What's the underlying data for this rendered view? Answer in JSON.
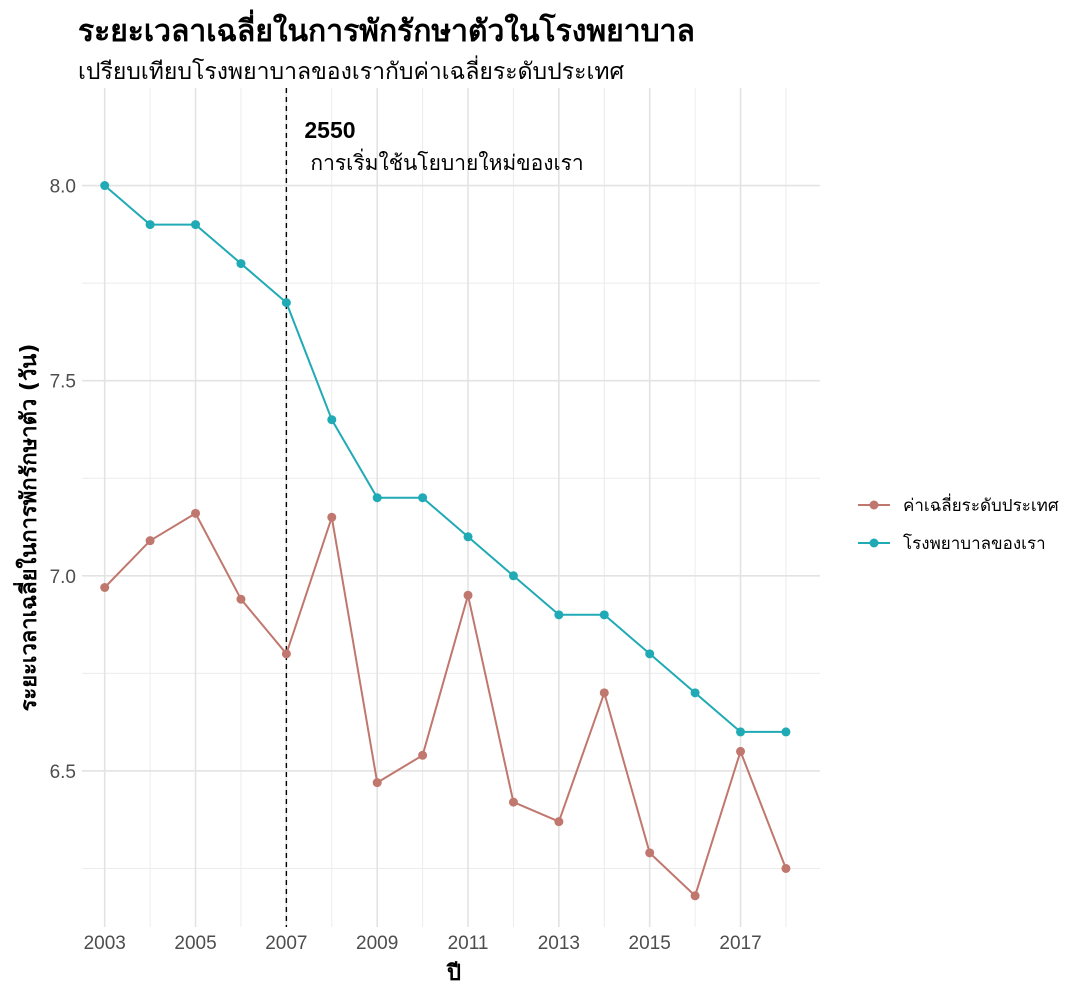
{
  "chart_data": {
    "type": "line",
    "title": "ระยะเวลาเฉลี่ยในการพักรักษาตัวในโรงพยาบาล",
    "subtitle": "เปรียบเทียบโรงพยาบาลของเรากับค่าเฉลี่ยระดับประเทศ",
    "xlabel": "ปี",
    "ylabel": "ระยะเวลาเฉลี่ยในการพักรักษาตัว (วัน)",
    "x": [
      2003,
      2004,
      2005,
      2006,
      2007,
      2008,
      2009,
      2010,
      2011,
      2012,
      2013,
      2014,
      2015,
      2016,
      2017,
      2018
    ],
    "x_ticks": [
      2003,
      2005,
      2007,
      2009,
      2011,
      2013,
      2015,
      2017
    ],
    "y_ticks": [
      6.5,
      7.0,
      7.5,
      8.0
    ],
    "y_tick_labels": [
      "6.5",
      "7.0",
      "7.5",
      "8.0"
    ],
    "xlim": [
      2002.5,
      2018.75
    ],
    "ylim": [
      6.1,
      8.25
    ],
    "grid": true,
    "legend_position": "right",
    "series": [
      {
        "name": "ค่าเฉลี่ยระดับประเทศ",
        "color": "#c0776e",
        "values": [
          6.97,
          7.09,
          7.16,
          6.94,
          6.8,
          7.15,
          6.47,
          6.54,
          6.95,
          6.42,
          6.37,
          6.7,
          6.29,
          6.18,
          6.55,
          6.25
        ]
      },
      {
        "name": "โรงพยาบาลของเรา",
        "color": "#20aab5",
        "values": [
          8.0,
          7.9,
          7.9,
          7.8,
          7.7,
          7.4,
          7.2,
          7.2,
          7.1,
          7.0,
          6.9,
          6.9,
          6.8,
          6.7,
          6.6,
          6.6
        ]
      }
    ],
    "annotation": {
      "x": 2007,
      "year_label": "2550",
      "text": "การเริ่มใช้นโยบายใหม่ของเรา"
    }
  }
}
